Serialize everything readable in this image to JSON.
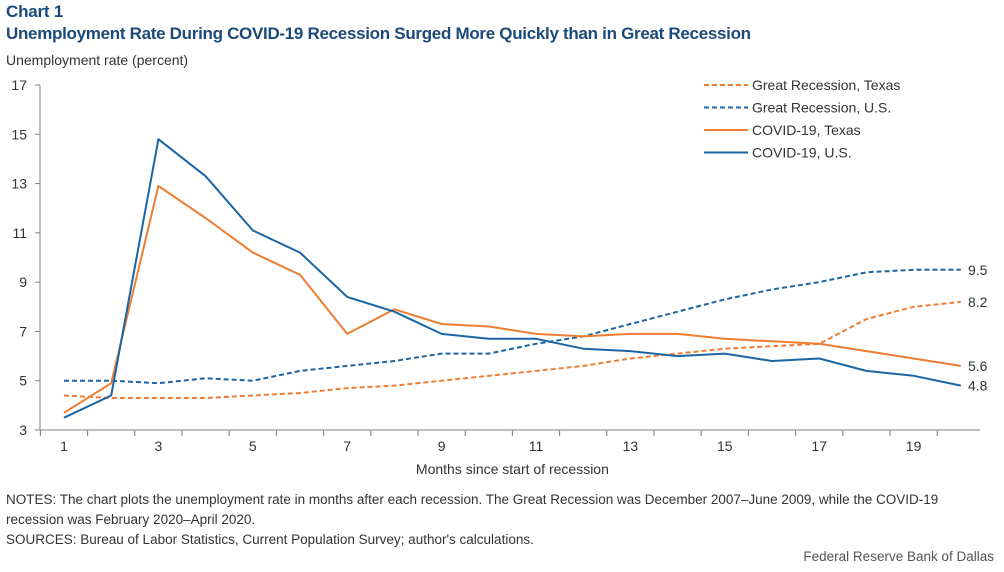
{
  "chart_number": "Chart 1",
  "title": "Unemployment Rate During COVID-19 Recession Surged More Quickly than in Great Recession",
  "notes": "NOTES: The chart plots the unemployment rate in months after each recession. The Great Recession was December 2007–June 2009, while the COVID-19 recession was February 2020–April 2020.",
  "sources": "SOURCES: Bureau of Labor Statistics, Current Population Survey; author's calculations.",
  "credit": "Federal Reserve Bank of Dallas",
  "colors": {
    "orange": "#ee7d31",
    "blue": "#1a65a4",
    "axis": "#7f7f7f"
  },
  "chart_data": {
    "type": "line",
    "ylabel": "Unemployment rate (percent)",
    "xlabel": "Months since start of recession",
    "xlim": [
      1,
      20
    ],
    "ylim": [
      3,
      17
    ],
    "x_ticks": [
      1,
      3,
      5,
      7,
      9,
      11,
      13,
      15,
      17,
      19
    ],
    "y_ticks": [
      3,
      5,
      7,
      9,
      11,
      13,
      15,
      17
    ],
    "grid": false,
    "legend_position": "top-right",
    "x": [
      1,
      2,
      3,
      4,
      5,
      6,
      7,
      8,
      9,
      10,
      11,
      12,
      13,
      14,
      15,
      16,
      17,
      18,
      19,
      20
    ],
    "series": [
      {
        "name": "Great Recession, Texas",
        "color": "#ee7d31",
        "dash": "dashed",
        "values": [
          4.4,
          4.3,
          4.3,
          4.3,
          4.4,
          4.5,
          4.7,
          4.8,
          5.0,
          5.2,
          5.4,
          5.6,
          5.9,
          6.1,
          6.3,
          6.4,
          6.5,
          7.5,
          8.0,
          8.2
        ],
        "end_label": "8.2"
      },
      {
        "name": "Great Recession, U.S.",
        "color": "#1a65a4",
        "dash": "dashed",
        "values": [
          5.0,
          5.0,
          4.9,
          5.1,
          5.0,
          5.4,
          5.6,
          5.8,
          6.1,
          6.1,
          6.5,
          6.8,
          7.3,
          7.8,
          8.3,
          8.7,
          9.0,
          9.4,
          9.5,
          9.5
        ],
        "end_label": "9.5"
      },
      {
        "name": "COVID-19, Texas",
        "color": "#ee7d31",
        "dash": "solid",
        "values": [
          3.7,
          4.9,
          12.9,
          11.6,
          10.2,
          9.3,
          6.9,
          7.9,
          7.3,
          7.2,
          6.9,
          6.8,
          6.9,
          6.9,
          6.7,
          6.6,
          6.5,
          6.2,
          5.9,
          5.6
        ],
        "end_label": "5.6"
      },
      {
        "name": "COVID-19, U.S.",
        "color": "#1a65a4",
        "dash": "solid",
        "values": [
          3.5,
          4.4,
          14.8,
          13.3,
          11.1,
          10.2,
          8.4,
          7.8,
          6.9,
          6.7,
          6.7,
          6.3,
          6.2,
          6.0,
          6.1,
          5.8,
          5.9,
          5.4,
          5.2,
          4.8
        ],
        "end_label": "4.8"
      }
    ]
  }
}
